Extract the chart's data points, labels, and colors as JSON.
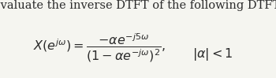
{
  "background_color": "#f5f5f0",
  "title_text": "Evaluate the inverse DTFT of the following DTFT:",
  "title_fontsize": 10.5,
  "title_color": "#2b2b2b",
  "math_color": "#2b2b2b",
  "math_fontsize": 11.5,
  "fig_width": 3.5,
  "fig_height": 0.99,
  "dpi": 100
}
